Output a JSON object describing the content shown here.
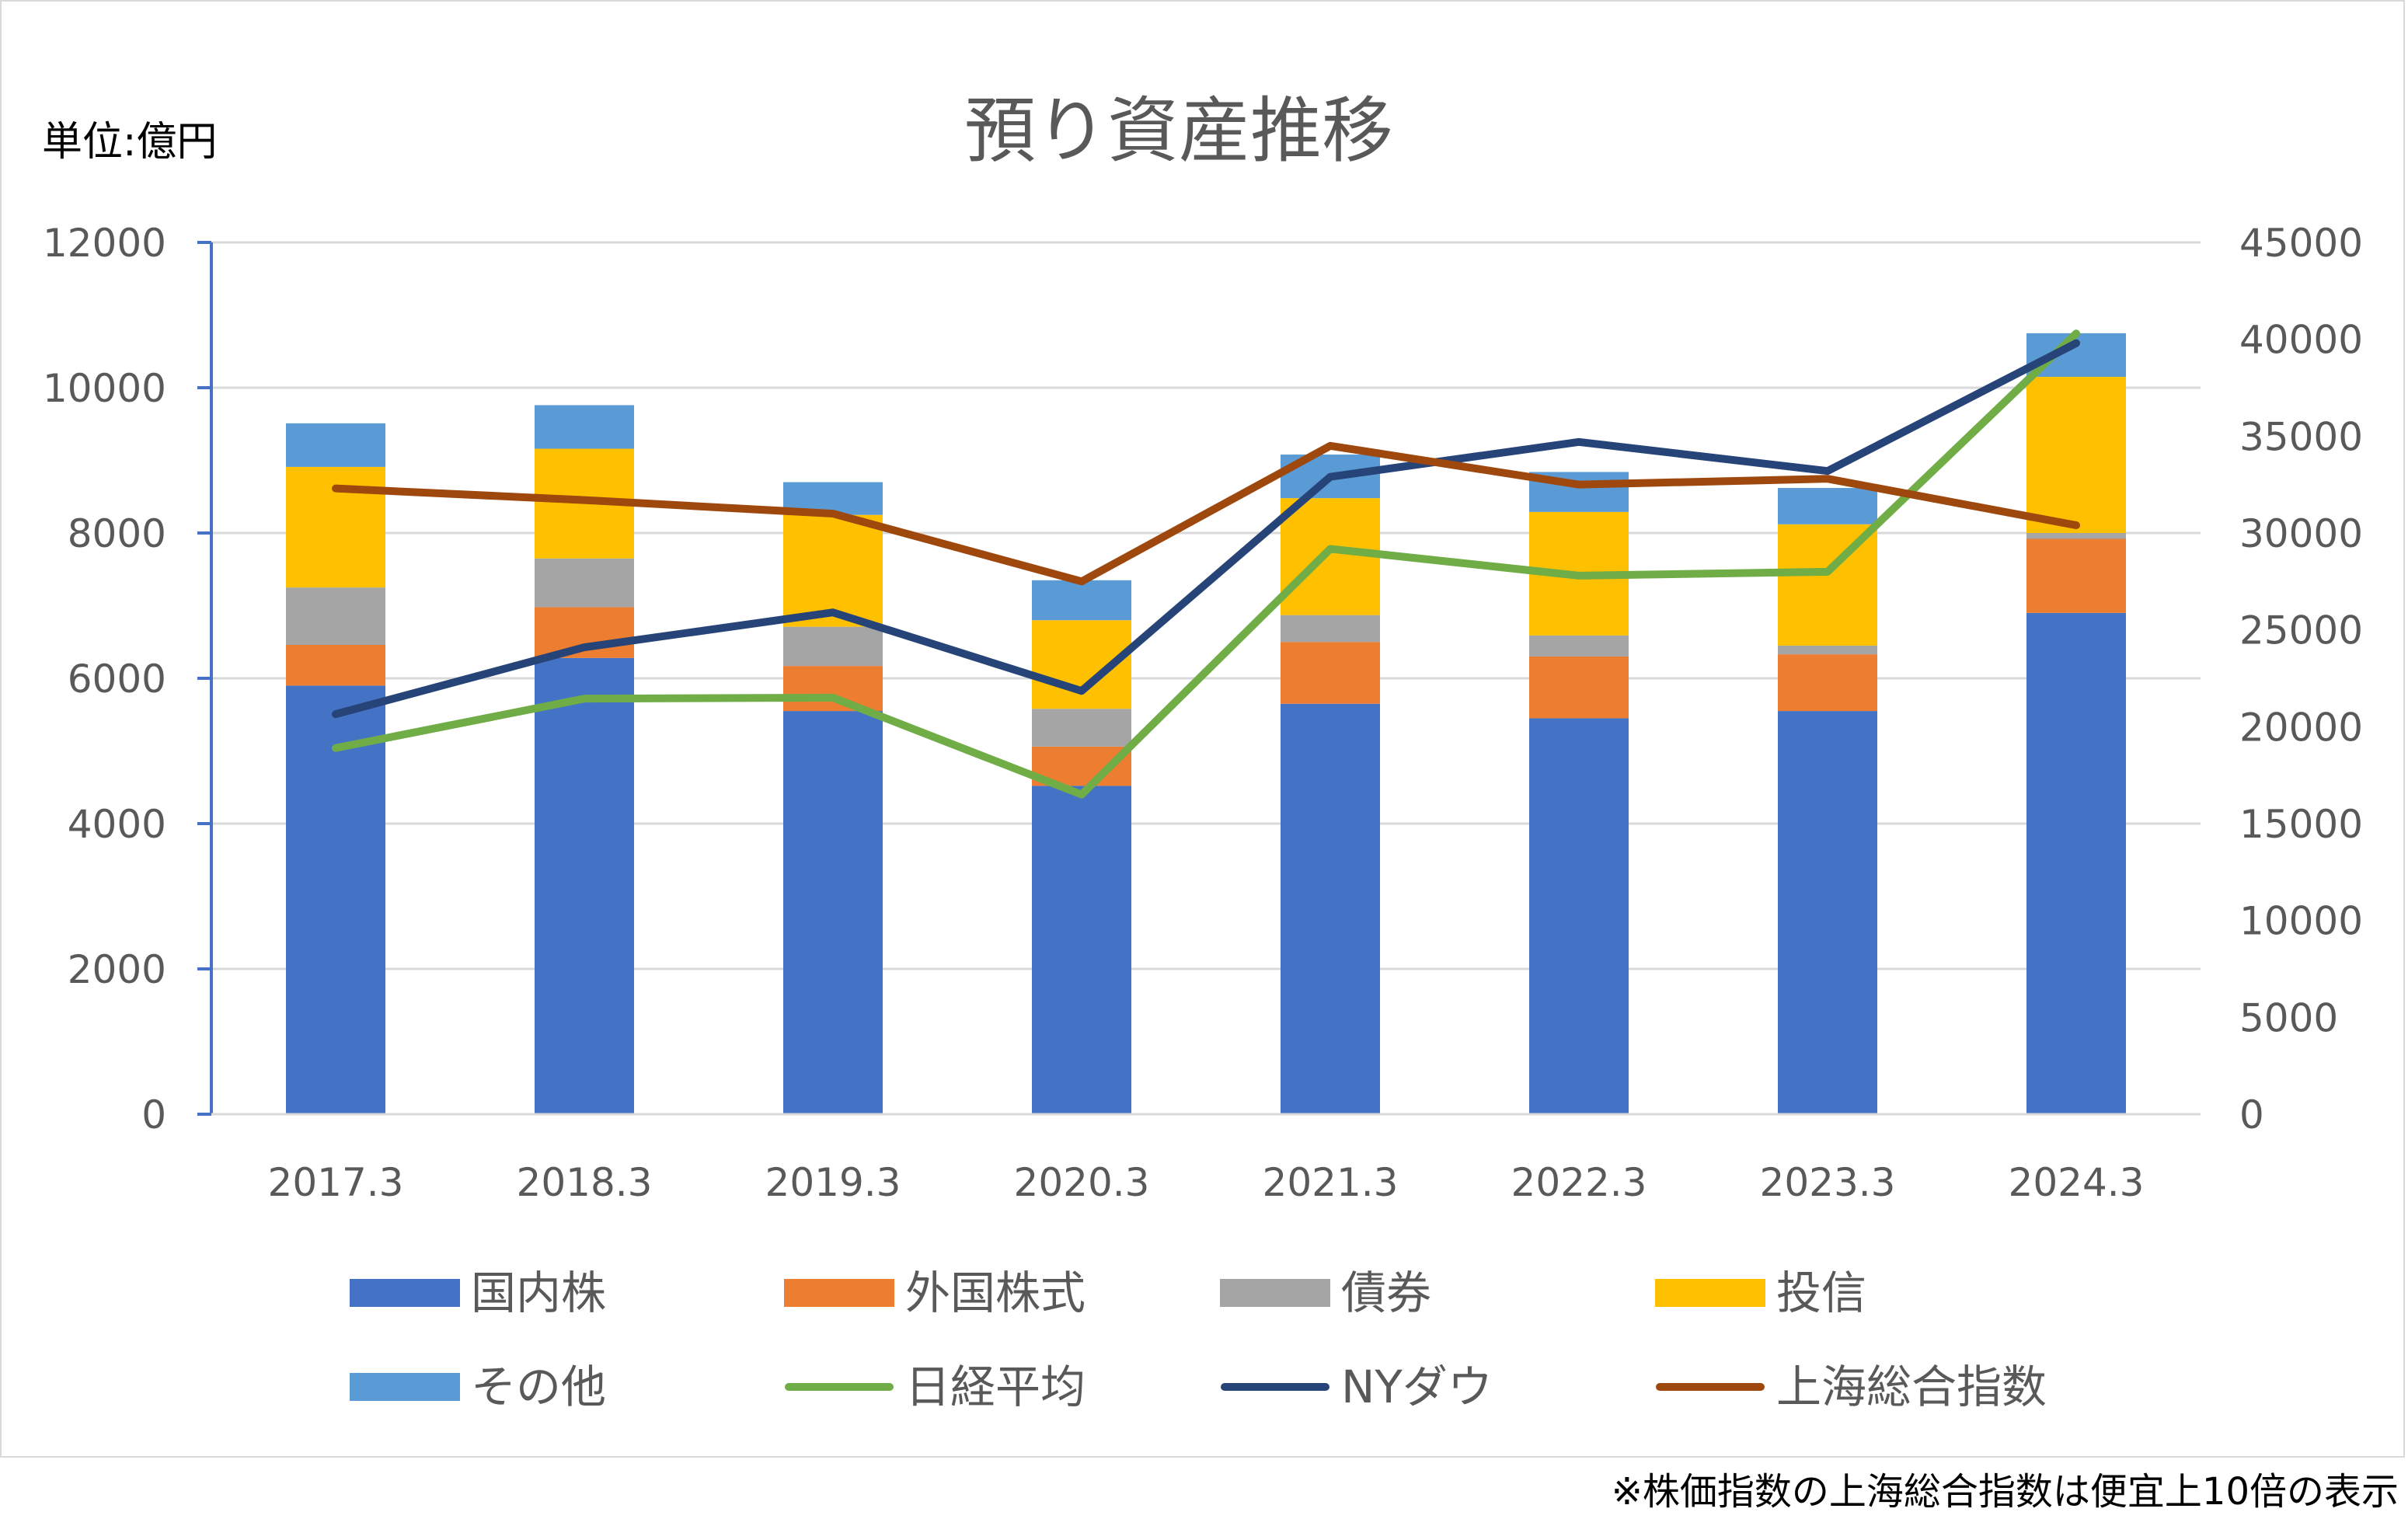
{
  "chart_data": {
    "type": "bar",
    "title": "預り資産推移",
    "unit_label": "単位:億円",
    "categories": [
      "2017.3",
      "2018.3",
      "2019.3",
      "2020.3",
      "2021.3",
      "2022.3",
      "2023.3",
      "2024.3"
    ],
    "stacked_series": [
      {
        "name": "国内株",
        "color": "#4472c4",
        "values": [
          5900,
          6280,
          5550,
          4520,
          5650,
          5450,
          5550,
          6900
        ]
      },
      {
        "name": "外国株式",
        "color": "#ed7d31",
        "values": [
          560,
          700,
          620,
          540,
          850,
          850,
          780,
          1020
        ]
      },
      {
        "name": "債券",
        "color": "#a5a5a5",
        "values": [
          790,
          670,
          540,
          520,
          370,
          290,
          120,
          80
        ]
      },
      {
        "name": "投信",
        "color": "#ffc000",
        "values": [
          1660,
          1510,
          1540,
          1220,
          1610,
          1700,
          1670,
          2150
        ]
      },
      {
        "name": "その他",
        "color": "#5b9bd5",
        "values": [
          600,
          600,
          450,
          550,
          600,
          550,
          500,
          600
        ]
      }
    ],
    "line_series": [
      {
        "name": "日経平均",
        "color": "#70ad47",
        "axis": "right",
        "values": [
          18900,
          21450,
          21500,
          16500,
          29180,
          27800,
          28000,
          40300
        ]
      },
      {
        "name": "NYダウ",
        "color": "#264478",
        "axis": "right",
        "values": [
          20650,
          24100,
          25900,
          21850,
          32900,
          34700,
          33200,
          39800
        ]
      },
      {
        "name": "上海総合指数",
        "color": "#9e480e",
        "axis": "right",
        "values": [
          32300,
          31700,
          31000,
          27500,
          34500,
          32500,
          32800,
          30400
        ]
      }
    ],
    "y_left": {
      "min": 0,
      "max": 12000,
      "ticks": [
        0,
        2000,
        4000,
        6000,
        8000,
        10000,
        12000
      ]
    },
    "y_right": {
      "min": 0,
      "max": 45000,
      "ticks": [
        0,
        5000,
        10000,
        15000,
        20000,
        25000,
        30000,
        35000,
        40000,
        45000
      ]
    },
    "grid": true,
    "legend_position": "bottom",
    "legend_order": [
      "国内株",
      "外国株式",
      "債券",
      "投信",
      "その他",
      "日経平均",
      "NYダウ",
      "上海総合指数"
    ]
  },
  "footnote": "※株価指数の上海総合指数は便宜上10倍の表示"
}
